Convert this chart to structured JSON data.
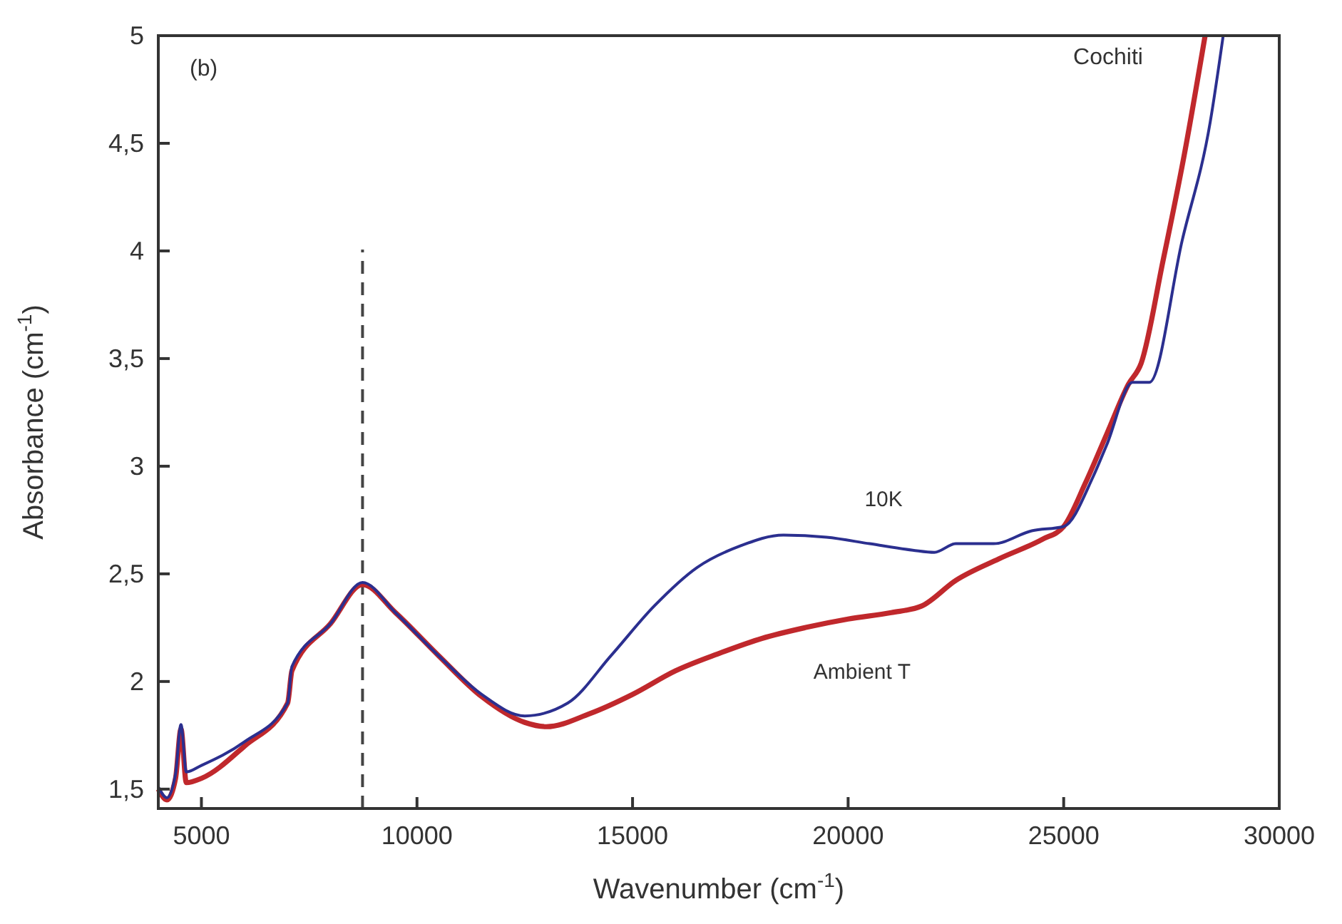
{
  "chart_data": {
    "type": "line",
    "xlabel": "Wavenumber (cm$^{-1}$)",
    "ylabel": "Absorbance (cm$^{-1}$)",
    "xlim": [
      4000,
      30000
    ],
    "xticks": [
      5000,
      10000,
      15000,
      20000,
      25000,
      30000
    ],
    "ylim": [
      1.41,
      5
    ],
    "yticks": [
      {
        "value": 1.5,
        "label": "1,5"
      },
      {
        "value": 2,
        "label": "2"
      },
      {
        "value": 2.5,
        "label": "2,5"
      },
      {
        "value": 3,
        "label": "3"
      },
      {
        "value": 3.5,
        "label": "3,5"
      },
      {
        "value": 4,
        "label": "4"
      },
      {
        "value": 4.5,
        "label": "4,5"
      },
      {
        "value": 5,
        "label": "5"
      }
    ],
    "grid": false,
    "marker": "none",
    "line_style": "solid",
    "annotations": [
      "(b)",
      "Cochiti"
    ],
    "ref_lines": [
      {
        "axis": "x",
        "value": 8737,
        "label": null,
        "color": "#444444",
        "line_style": "dashed"
      }
    ],
    "series": [
      {
        "name": "Ambient T",
        "color": "#c0282c",
        "x": [
          4000,
          4200,
          4400,
          4526,
          4650,
          5000,
          6000,
          7000,
          7100,
          8000,
          8737,
          9500,
          10500,
          11500,
          12500,
          13000,
          14000,
          15000,
          16000,
          17000,
          18000,
          19000,
          20000,
          21000,
          21700,
          22500,
          23500,
          24500,
          25000,
          25500,
          26000,
          26500,
          26800,
          27300,
          27800,
          28280
        ],
        "values": [
          1.5,
          1.45,
          1.55,
          1.78,
          1.53,
          1.55,
          1.7,
          1.9,
          2.05,
          2.27,
          2.45,
          2.32,
          2.12,
          1.93,
          1.81,
          1.79,
          1.85,
          1.94,
          2.05,
          2.13,
          2.2,
          2.25,
          2.29,
          2.32,
          2.35,
          2.47,
          2.57,
          2.66,
          2.72,
          2.92,
          3.15,
          3.38,
          3.48,
          3.95,
          4.45,
          5
        ]
      },
      {
        "name": "10K",
        "color": "#2b2f8f",
        "x": [
          4000,
          4200,
          4400,
          4526,
          4650,
          5000,
          6000,
          7000,
          7100,
          8000,
          8737,
          9500,
          10500,
          11500,
          12500,
          13500,
          14500,
          15500,
          16500,
          17500,
          18500,
          19500,
          20500,
          21500,
          22000,
          22500,
          23375,
          24260,
          25000,
          25680,
          26000,
          26600,
          26990,
          27750,
          28400,
          28700
        ],
        "values": [
          1.51,
          1.46,
          1.57,
          1.8,
          1.58,
          1.61,
          1.72,
          1.9,
          2.07,
          2.27,
          2.46,
          2.32,
          2.12,
          1.94,
          1.84,
          1.9,
          2.12,
          2.35,
          2.53,
          2.63,
          2.68,
          2.67,
          2.64,
          2.61,
          2.6,
          2.64,
          2.64,
          2.7,
          2.72,
          2.95,
          3.1,
          3.39,
          3.39,
          4.05,
          4.6,
          5
        ]
      }
    ]
  }
}
